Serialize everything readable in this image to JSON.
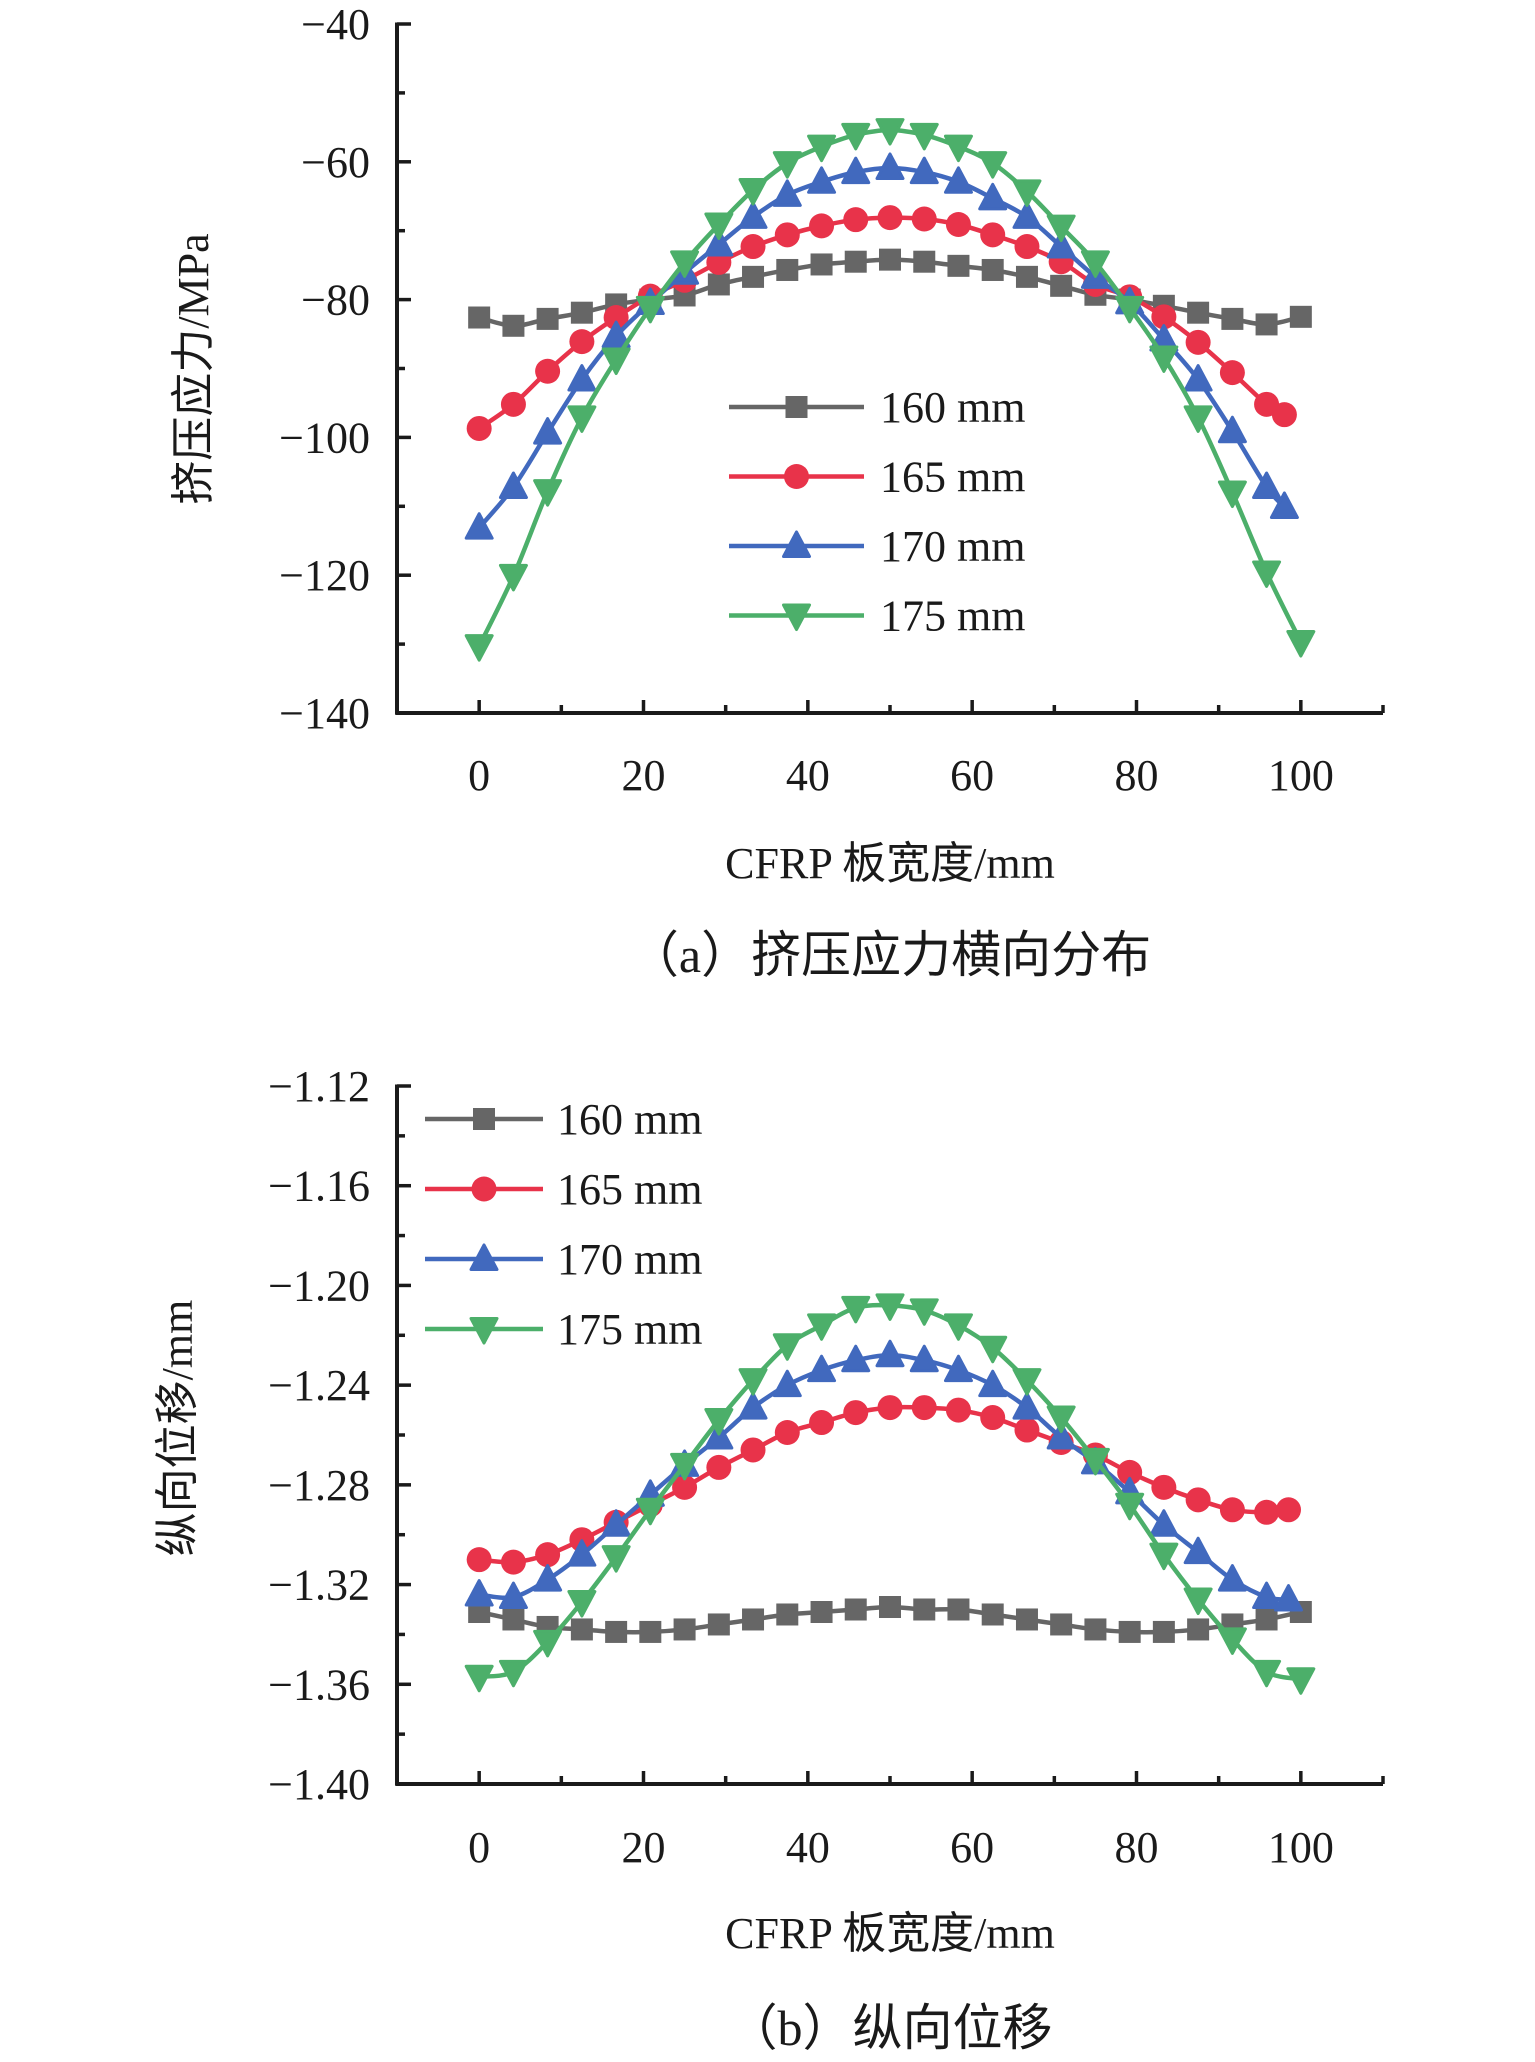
{
  "figure": {
    "captions": [
      "（a）挤压应力横向分布",
      "（b）纵向位移"
    ]
  },
  "chart_data": [
    {
      "id": "a",
      "type": "line",
      "caption": "（a）挤压应力横向分布",
      "xlabel": "CFRP 板宽度/mm",
      "ylabel": "挤压应力/MPa",
      "xlim": [
        -10,
        110
      ],
      "ylim": [
        -140,
        -40
      ],
      "xticks": [
        0,
        20,
        40,
        60,
        80,
        100
      ],
      "xtick_labels": [
        "0",
        "20",
        "40",
        "60",
        "80",
        "100"
      ],
      "xminor": [
        10,
        30,
        50,
        70,
        90,
        110
      ],
      "yticks": [
        -140,
        -120,
        -100,
        -80,
        -60,
        -40
      ],
      "ytick_labels": [
        "−140",
        "−120",
        "−100",
        "−80",
        "−60",
        "−40"
      ],
      "yminor": [
        -130,
        -110,
        -90,
        -70,
        -50
      ],
      "grid": false,
      "legend": {
        "position": "center-right",
        "entries": [
          "160 mm",
          "165 mm",
          "170 mm",
          "175 mm"
        ]
      },
      "series": [
        {
          "name": "160 mm",
          "color": "#666666",
          "marker": "square",
          "x": [
            0,
            4.17,
            8.33,
            12.5,
            16.67,
            20.83,
            25,
            29.17,
            33.33,
            37.5,
            41.67,
            45.83,
            50,
            54.17,
            58.33,
            62.5,
            66.67,
            70.83,
            75,
            79.17,
            83.33,
            87.5,
            91.67,
            95.83,
            100
          ],
          "values": [
            -82.6,
            -83.8,
            -82.8,
            -81.9,
            -80.7,
            -80.0,
            -79.4,
            -77.8,
            -76.7,
            -75.7,
            -74.9,
            -74.5,
            -74.2,
            -74.5,
            -75.1,
            -75.7,
            -76.7,
            -78.0,
            -79.3,
            -80.0,
            -80.9,
            -81.9,
            -82.8,
            -83.6,
            -82.5
          ]
        },
        {
          "name": "165 mm",
          "color": "#e8334a",
          "marker": "circle",
          "x": [
            0,
            4.17,
            8.33,
            12.5,
            16.67,
            20.83,
            25,
            29.17,
            33.33,
            37.5,
            41.67,
            45.83,
            50,
            54.17,
            58.33,
            62.5,
            66.67,
            70.83,
            75,
            79.17,
            83.33,
            87.5,
            91.67,
            95.83,
            98
          ],
          "values": [
            -98.7,
            -95.2,
            -90.4,
            -86.1,
            -82.6,
            -79.5,
            -77.2,
            -74.6,
            -72.3,
            -70.6,
            -69.3,
            -68.4,
            -68.1,
            -68.3,
            -69.1,
            -70.6,
            -72.3,
            -74.5,
            -77.8,
            -79.6,
            -82.5,
            -86.2,
            -90.6,
            -95.2,
            -96.7
          ]
        },
        {
          "name": "170 mm",
          "color": "#4169be",
          "marker": "triangle-up",
          "x": [
            0,
            4.17,
            8.33,
            12.5,
            16.67,
            20.83,
            25,
            29.17,
            33.33,
            37.5,
            41.67,
            45.83,
            50,
            54.17,
            58.33,
            62.5,
            66.67,
            70.83,
            75,
            79.17,
            83.33,
            87.5,
            91.67,
            95.83,
            98
          ],
          "values": [
            -113.1,
            -107.2,
            -99.3,
            -91.6,
            -85.3,
            -80.5,
            -76.1,
            -72.0,
            -68.0,
            -64.8,
            -62.9,
            -61.5,
            -60.9,
            -61.5,
            -62.9,
            -65.3,
            -68.0,
            -72.3,
            -76.7,
            -80.4,
            -85.8,
            -91.6,
            -99.1,
            -107.2,
            -110.1
          ]
        },
        {
          "name": "175 mm",
          "color": "#4caf6a",
          "marker": "triangle-down",
          "x": [
            0,
            4.17,
            8.33,
            12.5,
            16.67,
            20.83,
            25,
            29.17,
            33.33,
            37.5,
            41.67,
            45.83,
            50,
            54.17,
            58.33,
            62.5,
            66.67,
            70.83,
            75,
            79.17,
            83.33,
            87.5,
            91.67,
            95.83,
            100
          ],
          "values": [
            -130.3,
            -120.1,
            -107.8,
            -97.1,
            -88.7,
            -81.2,
            -74.6,
            -69.1,
            -64.1,
            -60.2,
            -57.8,
            -56.1,
            -55.4,
            -56.1,
            -57.8,
            -60.2,
            -64.3,
            -69.4,
            -74.6,
            -81.2,
            -88.4,
            -97.1,
            -108.0,
            -119.6,
            -129.7
          ]
        }
      ]
    },
    {
      "id": "b",
      "type": "line",
      "caption": "（b）纵向位移",
      "xlabel": "CFRP 板宽度/mm",
      "ylabel": "纵向位移/mm",
      "xlim": [
        -10,
        110
      ],
      "ylim": [
        -1.4,
        -1.12
      ],
      "xticks": [
        0,
        20,
        40,
        60,
        80,
        100
      ],
      "xtick_labels": [
        "0",
        "20",
        "40",
        "60",
        "80",
        "100"
      ],
      "xminor": [
        10,
        30,
        50,
        70,
        90,
        110
      ],
      "yticks": [
        -1.4,
        -1.36,
        -1.32,
        -1.28,
        -1.24,
        -1.2,
        -1.16,
        -1.12
      ],
      "ytick_labels": [
        "−1.40",
        "−1.36",
        "−1.32",
        "−1.28",
        "−1.24",
        "−1.20",
        "−1.16",
        "−1.12"
      ],
      "yminor": [
        -1.38,
        -1.34,
        -1.3,
        -1.26,
        -1.22,
        -1.18,
        -1.14
      ],
      "grid": false,
      "legend": {
        "position": "top-left",
        "entries": [
          "160 mm",
          "165 mm",
          "170 mm",
          "175 mm"
        ]
      },
      "series": [
        {
          "name": "160 mm",
          "color": "#666666",
          "marker": "square",
          "x": [
            0,
            4.17,
            8.33,
            12.5,
            16.67,
            20.83,
            25,
            29.17,
            33.33,
            37.5,
            41.67,
            45.83,
            50,
            54.17,
            58.33,
            62.5,
            66.67,
            70.83,
            75,
            79.17,
            83.33,
            87.5,
            91.67,
            95.83,
            100
          ],
          "values": [
            -1.331,
            -1.334,
            -1.337,
            -1.338,
            -1.339,
            -1.339,
            -1.338,
            -1.336,
            -1.334,
            -1.332,
            -1.331,
            -1.33,
            -1.329,
            -1.33,
            -1.33,
            -1.332,
            -1.334,
            -1.336,
            -1.338,
            -1.339,
            -1.339,
            -1.338,
            -1.336,
            -1.334,
            -1.331
          ]
        },
        {
          "name": "165 mm",
          "color": "#e8334a",
          "marker": "circle",
          "x": [
            0,
            4.17,
            8.33,
            12.5,
            16.67,
            20.83,
            25,
            29.17,
            33.33,
            37.5,
            41.67,
            45.83,
            50,
            54.17,
            58.33,
            62.5,
            66.67,
            70.83,
            75,
            79.17,
            83.33,
            87.5,
            91.67,
            95.83,
            98.5
          ],
          "values": [
            -1.31,
            -1.311,
            -1.308,
            -1.302,
            -1.295,
            -1.288,
            -1.281,
            -1.273,
            -1.266,
            -1.259,
            -1.255,
            -1.251,
            -1.249,
            -1.249,
            -1.25,
            -1.253,
            -1.258,
            -1.263,
            -1.268,
            -1.275,
            -1.281,
            -1.286,
            -1.29,
            -1.291,
            -1.29
          ]
        },
        {
          "name": "170 mm",
          "color": "#4169be",
          "marker": "triangle-up",
          "x": [
            0,
            4.17,
            8.33,
            12.5,
            16.67,
            20.83,
            25,
            29.17,
            33.33,
            37.5,
            41.67,
            45.83,
            50,
            54.17,
            58.33,
            62.5,
            66.67,
            70.83,
            75,
            79.17,
            83.33,
            87.5,
            91.67,
            95.83,
            98.5
          ],
          "values": [
            -1.324,
            -1.325,
            -1.318,
            -1.308,
            -1.296,
            -1.284,
            -1.272,
            -1.261,
            -1.249,
            -1.24,
            -1.234,
            -1.23,
            -1.228,
            -1.23,
            -1.234,
            -1.24,
            -1.249,
            -1.261,
            -1.271,
            -1.283,
            -1.296,
            -1.307,
            -1.318,
            -1.325,
            -1.326
          ]
        },
        {
          "name": "175 mm",
          "color": "#4caf6a",
          "marker": "triangle-down",
          "x": [
            0,
            4.17,
            8.33,
            12.5,
            16.67,
            20.83,
            25,
            29.17,
            33.33,
            37.5,
            41.67,
            45.83,
            50,
            54.17,
            58.33,
            62.5,
            66.67,
            70.83,
            75,
            79.17,
            83.33,
            87.5,
            91.67,
            95.83,
            100
          ],
          "values": [
            -1.357,
            -1.355,
            -1.343,
            -1.327,
            -1.309,
            -1.29,
            -1.272,
            -1.254,
            -1.238,
            -1.224,
            -1.216,
            -1.209,
            -1.208,
            -1.21,
            -1.216,
            -1.225,
            -1.238,
            -1.253,
            -1.27,
            -1.288,
            -1.308,
            -1.326,
            -1.342,
            -1.355,
            -1.358
          ]
        }
      ]
    }
  ]
}
